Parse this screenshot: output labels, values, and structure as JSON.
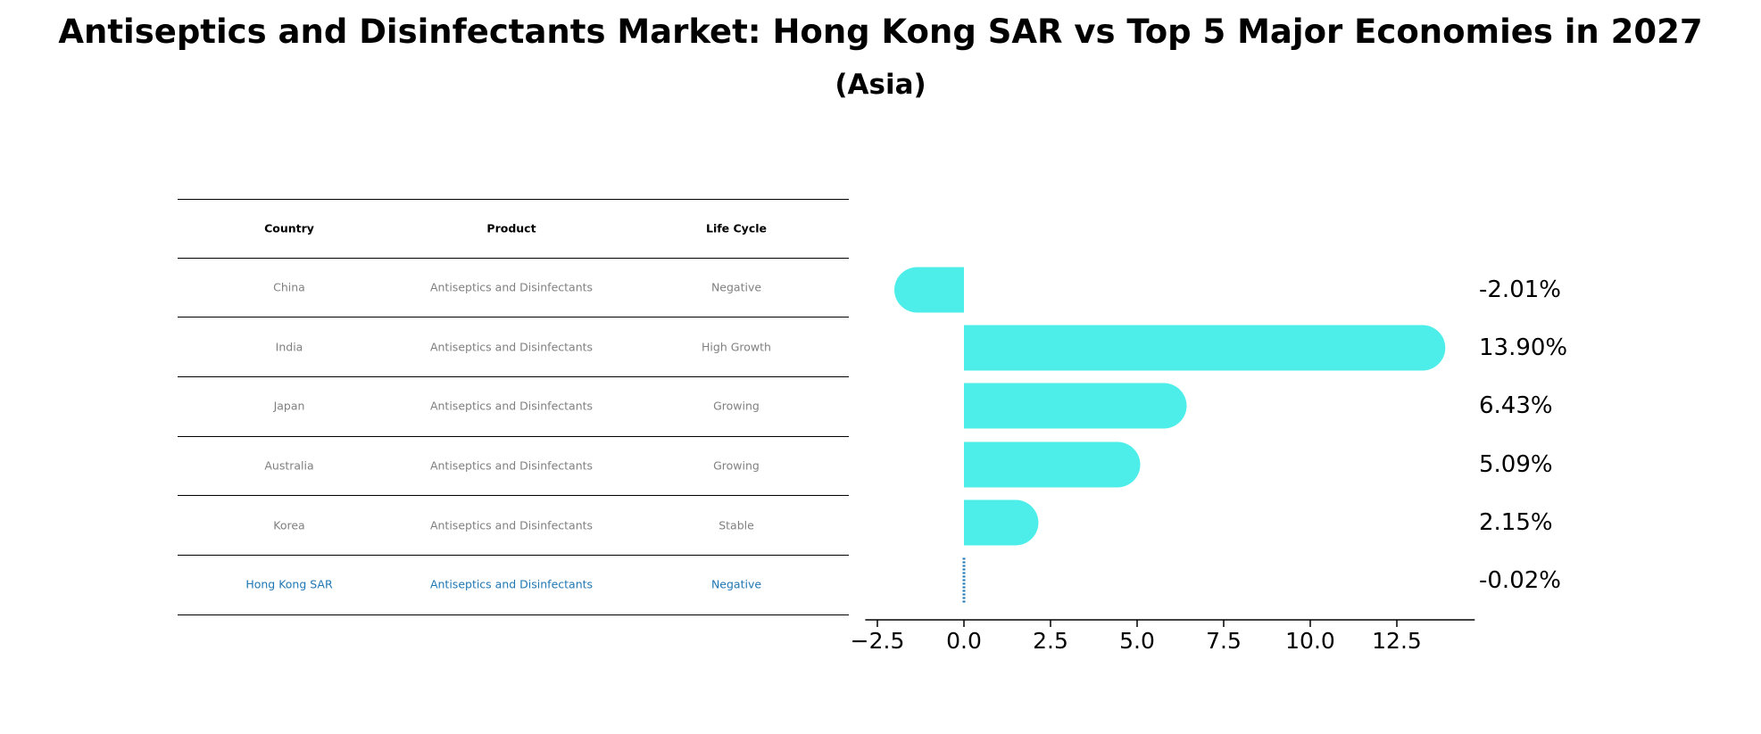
{
  "title_line1": "Antiseptics and Disinfectants Market: Hong Kong SAR vs Top 5 Major Economies in 2027",
  "title_line2": "(Asia)",
  "table": {
    "headers": [
      "Country",
      "Product",
      "Life Cycle"
    ],
    "rows": [
      {
        "country": "China",
        "product": "Antiseptics and Disinfectants",
        "life_cycle": "Negative",
        "highlight": false
      },
      {
        "country": "India",
        "product": "Antiseptics and Disinfectants",
        "life_cycle": "High Growth",
        "highlight": false
      },
      {
        "country": "Japan",
        "product": "Antiseptics and Disinfectants",
        "life_cycle": "Growing",
        "highlight": false
      },
      {
        "country": "Australia",
        "product": "Antiseptics and Disinfectants",
        "life_cycle": "Growing",
        "highlight": false
      },
      {
        "country": "Korea",
        "product": "Antiseptics and Disinfectants",
        "life_cycle": "Stable",
        "highlight": false
      },
      {
        "country": "Hong Kong SAR",
        "product": "Antiseptics and Disinfectants",
        "life_cycle": "Negative",
        "highlight": true
      }
    ]
  },
  "colors": {
    "bar": "#4deeea",
    "highlight": "#1f77b4",
    "muted_text": "#808080"
  },
  "chart_data": {
    "type": "bar",
    "orientation": "horizontal",
    "categories": [
      "China",
      "India",
      "Japan",
      "Australia",
      "Korea",
      "Hong Kong SAR"
    ],
    "values": [
      -2.01,
      13.9,
      6.43,
      5.09,
      2.15,
      -0.02
    ],
    "value_labels": [
      "-2.01%",
      "13.90%",
      "6.43%",
      "5.09%",
      "2.15%",
      "-0.02%"
    ],
    "xticks": [
      -2.5,
      0.0,
      2.5,
      5.0,
      7.5,
      10.0,
      12.5
    ],
    "xtick_labels": [
      "−2.5",
      "0.0",
      "2.5",
      "5.0",
      "7.5",
      "10.0",
      "12.5"
    ],
    "xlim": [
      -2.85,
      14.75
    ],
    "grid": false
  }
}
